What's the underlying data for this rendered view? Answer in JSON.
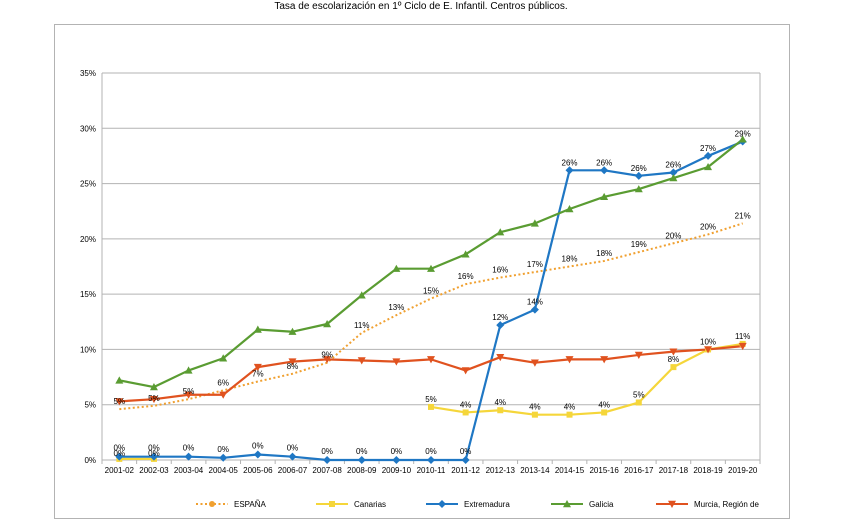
{
  "chart_data": {
    "type": "line",
    "title": "Tasa de escolarización en 1º Ciclo de E. Infantil. Centros públicos.",
    "xlabel": "",
    "ylabel": "",
    "ylim": [
      0,
      35
    ],
    "y_ticks": [
      "0%",
      "5%",
      "10%",
      "15%",
      "20%",
      "25%",
      "30%",
      "35%"
    ],
    "grid": true,
    "legend_position": "bottom",
    "categories": [
      "2001-02",
      "2002-03",
      "2003-04",
      "2004-05",
      "2005-06",
      "2006-07",
      "2007-08",
      "2008-09",
      "2009-10",
      "2010-11",
      "2011-12",
      "2012-13",
      "2013-14",
      "2014-15",
      "2015-16",
      "2016-17",
      "2017-18",
      "2018-19",
      "2019-20"
    ],
    "series": [
      {
        "name": "ESPAÑA",
        "color": "#f0a030",
        "style": "dotted",
        "marker": "circle",
        "values": [
          4.6,
          4.9,
          5.5,
          6.3,
          7.1,
          7.8,
          8.8,
          11.5,
          13.1,
          14.6,
          15.9,
          16.5,
          17.0,
          17.5,
          18.0,
          18.8,
          19.6,
          20.4,
          21.4
        ],
        "labels": [
          "5%",
          "5%",
          "5%",
          "6%",
          "7%",
          "8%",
          "9%",
          "11%",
          "13%",
          "15%",
          "16%",
          "16%",
          "17%",
          "18%",
          "18%",
          "19%",
          "20%",
          "20%",
          "21%"
        ]
      },
      {
        "name": "Canarias",
        "color": "#f5d63a",
        "style": "solid",
        "marker": "square",
        "values": [
          0.1,
          0.1,
          null,
          null,
          null,
          null,
          null,
          null,
          null,
          4.8,
          4.3,
          4.5,
          4.1,
          4.1,
          4.3,
          5.2,
          8.4,
          10.0,
          10.5
        ],
        "labels": [
          "0%",
          "0%",
          "",
          "",
          "",
          "",
          "",
          "",
          "",
          "5%",
          "4%",
          "4%",
          "4%",
          "4%",
          "4%",
          "5%",
          "8%",
          "10%",
          "11%"
        ]
      },
      {
        "name": "Extremadura",
        "color": "#1f77c4",
        "style": "solid",
        "marker": "diamond",
        "values": [
          0.3,
          0.3,
          0.3,
          0.2,
          0.5,
          0.3,
          0.0,
          0.0,
          0.0,
          0.0,
          0.0,
          12.2,
          13.6,
          26.2,
          26.2,
          25.7,
          26.0,
          27.5,
          28.8
        ],
        "labels": [
          "0%",
          "0%",
          "0%",
          "0%",
          "0%",
          "0%",
          "0%",
          "0%",
          "0%",
          "0%",
          "0%",
          "12%",
          "14%",
          "26%",
          "26%",
          "26%",
          "26%",
          "27%",
          "29%"
        ]
      },
      {
        "name": "Galicia",
        "color": "#5a9c32",
        "style": "solid",
        "marker": "triangle",
        "values": [
          7.2,
          6.6,
          8.1,
          9.2,
          11.8,
          11.6,
          12.3,
          14.9,
          17.3,
          17.3,
          18.6,
          20.6,
          21.4,
          22.7,
          23.8,
          24.5,
          25.5,
          26.5,
          29.0
        ],
        "labels": []
      },
      {
        "name": "Murcia, Región de",
        "color": "#e0521f",
        "style": "solid",
        "marker": "triangle-down",
        "values": [
          5.3,
          5.5,
          5.9,
          5.9,
          8.4,
          8.9,
          9.1,
          9.0,
          8.9,
          9.1,
          8.1,
          9.3,
          8.8,
          9.1,
          9.1,
          9.5,
          9.8,
          10.0,
          10.3
        ],
        "labels": []
      }
    ]
  }
}
